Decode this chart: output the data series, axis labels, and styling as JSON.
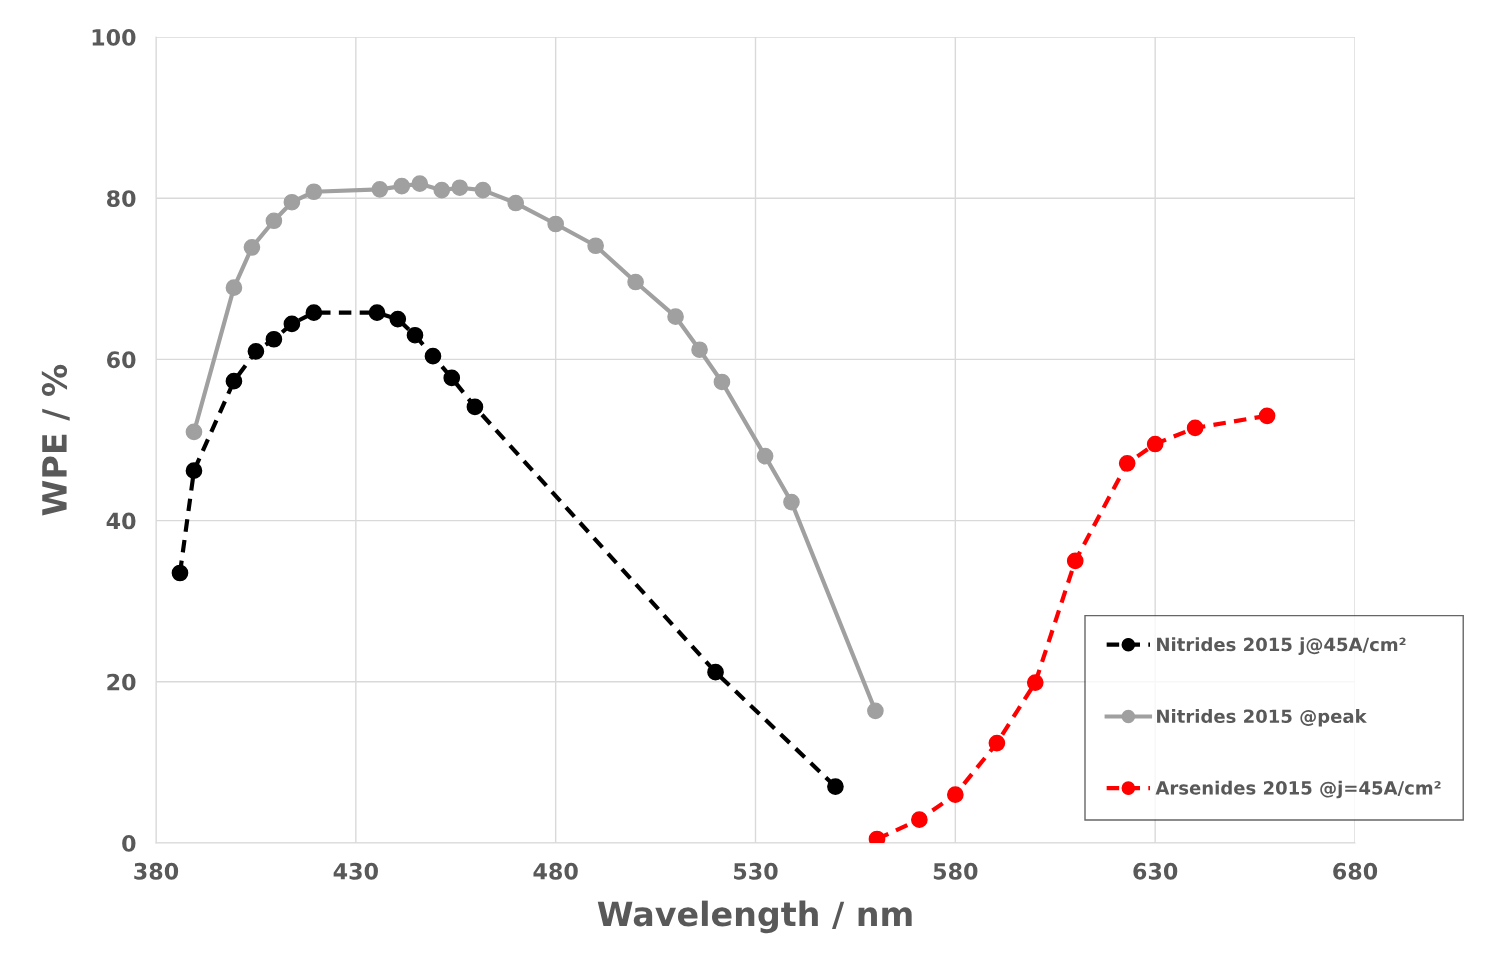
{
  "chart_data": {
    "type": "line",
    "xlabel": "Wavelength / nm",
    "ylabel": "WPE / %",
    "xlim": [
      380,
      680
    ],
    "xticks": [
      380,
      430,
      480,
      530,
      580,
      630,
      680
    ],
    "ylim": [
      0,
      100
    ],
    "yticks": [
      0,
      20,
      40,
      60,
      80,
      100
    ],
    "grid": true,
    "legend": "right",
    "marker": "circle",
    "series": [
      {
        "name": "Nitrides 2015 j@45A/cm²",
        "color": "#000000",
        "line_style": "dashed",
        "x": [
          386,
          389.5,
          399.5,
          405,
          409.5,
          414,
          419.5,
          435.3,
          440.5,
          444.8,
          449.3,
          454,
          459.8,
          520,
          550
        ],
        "values": [
          33.5,
          46.2,
          57.3,
          61,
          62.5,
          64.4,
          65.8,
          65.8,
          65,
          63,
          60.4,
          57.7,
          54.1,
          21.2,
          7.0
        ]
      },
      {
        "name": "Nitrides 2015 @peak",
        "color": "#a0a0a0",
        "line_style": "solid",
        "x": [
          389.5,
          399.5,
          404,
          409.5,
          414,
          419.5,
          436,
          441.5,
          446,
          451.5,
          456,
          461.8,
          470,
          480,
          490,
          500,
          510,
          516,
          521.6,
          532.4,
          539,
          560
        ],
        "values": [
          51,
          68.9,
          73.9,
          77.2,
          79.5,
          80.8,
          81.1,
          81.5,
          81.8,
          81,
          81.3,
          81,
          79.4,
          76.8,
          74.1,
          69.6,
          65.3,
          61.2,
          57.2,
          48,
          42.3,
          16.4
        ]
      },
      {
        "name": "Arsenides 2015 @j=45A/cm²",
        "color": "#ff0000",
        "line_style": "dashed",
        "x": [
          560.4,
          571,
          580,
          590.4,
          600,
          610,
          623,
          630,
          640,
          658
        ],
        "values": [
          0.5,
          2.9,
          6.0,
          12.4,
          19.9,
          35,
          47.1,
          49.5,
          51.5,
          53
        ]
      }
    ]
  }
}
